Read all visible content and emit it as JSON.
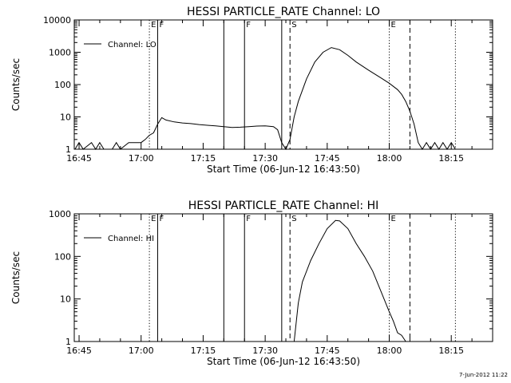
{
  "window": {
    "stamp": "7-Jun-2012 11:22"
  },
  "chart_data": [
    {
      "type": "line",
      "title": "HESSI PARTICLE_RATE Channel: LO",
      "xlabel": "Start Time (06-Jun-12 16:43:50)",
      "ylabel": "Counts/sec",
      "y_scale": "log",
      "ylim": [
        1,
        10000
      ],
      "y_ticks": [
        "1",
        "10",
        "100",
        "1000",
        "10000"
      ],
      "xlim": [
        "16:43:50",
        "18:25:00"
      ],
      "x_ticks": [
        "16:45",
        "17:00",
        "17:15",
        "17:30",
        "17:45",
        "18:00",
        "18:15"
      ],
      "grid": false,
      "legend": {
        "placement": "top-left",
        "label": "Channel: LO"
      },
      "markers": [
        {
          "time": "17:02",
          "style": "dotted",
          "label": "E"
        },
        {
          "time": "17:04",
          "style": "solid",
          "label": "F"
        },
        {
          "time": "17:20",
          "style": "solid",
          "label": ""
        },
        {
          "time": "17:25",
          "style": "solid",
          "label": "F"
        },
        {
          "time": "17:34",
          "style": "solid",
          "label": ""
        },
        {
          "time": "17:36",
          "style": "dashed",
          "label": "S"
        },
        {
          "time": "18:00",
          "style": "dotted",
          "label": "E"
        },
        {
          "time": "18:05",
          "style": "dashed",
          "label": ""
        },
        {
          "time": "18:16",
          "style": "dotted",
          "label": ""
        }
      ],
      "series": [
        {
          "values": [
            [
              "16:44",
              1
            ],
            [
              "16:45",
              1.6
            ],
            [
              "16:46",
              1
            ],
            [
              "16:48",
              1.6
            ],
            [
              "16:49",
              1
            ],
            [
              "16:50",
              1.6
            ],
            [
              "16:51",
              1
            ],
            [
              "16:53",
              1
            ],
            [
              "16:54",
              1.6
            ],
            [
              "16:55",
              1
            ],
            [
              "16:57",
              1.6
            ],
            [
              "16:58",
              1.6
            ],
            [
              "16:59",
              1.6
            ],
            [
              "17:00",
              1.6
            ],
            [
              "17:01",
              2
            ],
            [
              "17:02",
              2.7
            ],
            [
              "17:03",
              3.2
            ],
            [
              "17:04",
              6
            ],
            [
              "17:05",
              9.5
            ],
            [
              "17:06",
              8
            ],
            [
              "17:08",
              7
            ],
            [
              "17:10",
              6.5
            ],
            [
              "17:12",
              6.2
            ],
            [
              "17:14",
              5.8
            ],
            [
              "17:16",
              5.5
            ],
            [
              "17:18",
              5.3
            ],
            [
              "17:20",
              5
            ],
            [
              "17:22",
              4.7
            ],
            [
              "17:24",
              4.8
            ],
            [
              "17:26",
              5
            ],
            [
              "17:28",
              5.2
            ],
            [
              "17:30",
              5.3
            ],
            [
              "17:32",
              5
            ],
            [
              "17:33",
              4
            ],
            [
              "17:34",
              1.6
            ],
            [
              "17:35",
              1
            ],
            [
              "17:36",
              2
            ],
            [
              "17:37",
              10
            ],
            [
              "17:38",
              30
            ],
            [
              "17:40",
              150
            ],
            [
              "17:42",
              500
            ],
            [
              "17:44",
              1000
            ],
            [
              "17:46",
              1400
            ],
            [
              "17:48",
              1200
            ],
            [
              "17:50",
              800
            ],
            [
              "17:52",
              500
            ],
            [
              "17:55",
              280
            ],
            [
              "17:58",
              160
            ],
            [
              "18:00",
              110
            ],
            [
              "18:02",
              70
            ],
            [
              "18:03",
              50
            ],
            [
              "18:04",
              30
            ],
            [
              "18:05",
              15
            ],
            [
              "18:06",
              6
            ],
            [
              "18:07",
              1.6
            ],
            [
              "18:08",
              1
            ],
            [
              "18:09",
              1.6
            ],
            [
              "18:10",
              1
            ],
            [
              "18:11",
              1.6
            ],
            [
              "18:12",
              1
            ],
            [
              "18:13",
              1.6
            ],
            [
              "18:14",
              1
            ],
            [
              "18:15",
              1.6
            ],
            [
              "18:16",
              1
            ]
          ]
        }
      ]
    },
    {
      "type": "line",
      "title": "HESSI PARTICLE_RATE Channel: HI",
      "xlabel": "Start Time (06-Jun-12 16:43:50)",
      "ylabel": "Counts/sec",
      "y_scale": "log",
      "ylim": [
        1,
        1000
      ],
      "y_ticks": [
        "1",
        "10",
        "100",
        "1000"
      ],
      "xlim": [
        "16:43:50",
        "18:25:00"
      ],
      "x_ticks": [
        "16:45",
        "17:00",
        "17:15",
        "17:30",
        "17:45",
        "18:00",
        "18:15"
      ],
      "grid": false,
      "legend": {
        "placement": "top-left",
        "label": "Channel: HI"
      },
      "markers": [
        {
          "time": "17:02",
          "style": "dotted",
          "label": "E"
        },
        {
          "time": "17:04",
          "style": "solid",
          "label": "F"
        },
        {
          "time": "17:20",
          "style": "solid",
          "label": ""
        },
        {
          "time": "17:25",
          "style": "solid",
          "label": "F"
        },
        {
          "time": "17:34",
          "style": "solid",
          "label": ""
        },
        {
          "time": "17:36",
          "style": "dashed",
          "label": "S"
        },
        {
          "time": "18:00",
          "style": "dotted",
          "label": "E"
        },
        {
          "time": "18:05",
          "style": "dashed",
          "label": ""
        },
        {
          "time": "18:16",
          "style": "dotted",
          "label": ""
        }
      ],
      "series": [
        {
          "values": [
            [
              "17:37",
              1
            ],
            [
              "17:38",
              8
            ],
            [
              "17:39",
              25
            ],
            [
              "17:41",
              80
            ],
            [
              "17:43",
              200
            ],
            [
              "17:45",
              450
            ],
            [
              "17:47",
              700
            ],
            [
              "17:48",
              680
            ],
            [
              "17:50",
              450
            ],
            [
              "17:52",
              200
            ],
            [
              "17:54",
              100
            ],
            [
              "17:56",
              45
            ],
            [
              "17:58",
              15
            ],
            [
              "18:00",
              5
            ],
            [
              "18:01",
              3
            ],
            [
              "18:02",
              1.6
            ],
            [
              "18:03",
              1.4
            ],
            [
              "18:04",
              1
            ]
          ]
        }
      ]
    }
  ]
}
